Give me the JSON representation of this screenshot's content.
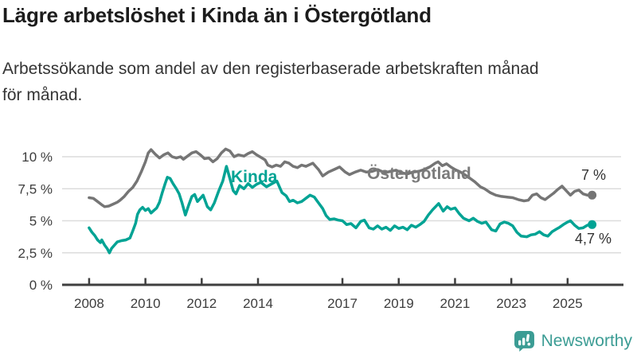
{
  "header": {
    "title": "Lägre arbetslöshet i Kinda än i Östergötland",
    "subtitle_lines": [
      "Arbetssökande som andel av den registerbaserade arbetskraften månad",
      "för månad."
    ],
    "subtitle_full": "Arbetssökande som andel av den registerbaserade arbetskraften månad för månad."
  },
  "chart_data": {
    "type": "line",
    "title": "Lägre arbetslöshet i Kinda än i Östergötland",
    "unit": "%",
    "grid": true,
    "legend_position": "inline-labels",
    "xlim": [
      2007.04,
      2026.9
    ],
    "ylim": [
      0,
      10
    ],
    "x_ticks": [
      {
        "year": 2008,
        "label": "2008"
      },
      {
        "year": 2010,
        "label": "2010"
      },
      {
        "year": 2012,
        "label": "2012"
      },
      {
        "year": 2014,
        "label": "2014"
      },
      {
        "year": 2017,
        "label": "2017"
      },
      {
        "year": 2019,
        "label": "2019"
      },
      {
        "year": 2021,
        "label": "2021"
      },
      {
        "year": 2023,
        "label": "2023"
      },
      {
        "year": 2025,
        "label": "2025"
      }
    ],
    "y_ticks": [
      {
        "value": 0,
        "label": "0 %"
      },
      {
        "value": 2.5,
        "label": "2,5 %"
      },
      {
        "value": 5,
        "label": "5 %"
      },
      {
        "value": 7.5,
        "label": "7,5 %"
      },
      {
        "value": 10,
        "label": "10 %"
      }
    ],
    "colors": {
      "grid": "#dcdcdc",
      "axis": "#3f3f3f",
      "tick_text": "#3d3d3d"
    },
    "series": [
      {
        "id": "ostergotland",
        "name": "Östergötland",
        "color": "#757575",
        "label_color": "#7a7a7a",
        "end_label": "7 %",
        "end_value": 7,
        "points": [
          [
            2008.0,
            6.8
          ],
          [
            2008.15,
            6.75
          ],
          [
            2008.3,
            6.5
          ],
          [
            2008.45,
            6.25
          ],
          [
            2008.55,
            6.1
          ],
          [
            2008.7,
            6.15
          ],
          [
            2008.85,
            6.3
          ],
          [
            2009.0,
            6.45
          ],
          [
            2009.1,
            6.6
          ],
          [
            2009.25,
            6.9
          ],
          [
            2009.4,
            7.3
          ],
          [
            2009.55,
            7.6
          ],
          [
            2009.7,
            8.1
          ],
          [
            2009.85,
            8.8
          ],
          [
            2010.0,
            9.6
          ],
          [
            2010.1,
            10.3
          ],
          [
            2010.2,
            10.55
          ],
          [
            2010.35,
            10.2
          ],
          [
            2010.5,
            9.9
          ],
          [
            2010.65,
            10.15
          ],
          [
            2010.8,
            10.3
          ],
          [
            2010.95,
            10.0
          ],
          [
            2011.1,
            9.9
          ],
          [
            2011.25,
            10.0
          ],
          [
            2011.35,
            9.8
          ],
          [
            2011.5,
            10.05
          ],
          [
            2011.65,
            10.3
          ],
          [
            2011.8,
            10.4
          ],
          [
            2011.95,
            10.15
          ],
          [
            2012.1,
            9.85
          ],
          [
            2012.25,
            9.9
          ],
          [
            2012.4,
            9.6
          ],
          [
            2012.55,
            9.85
          ],
          [
            2012.7,
            10.3
          ],
          [
            2012.85,
            10.6
          ],
          [
            2013.0,
            10.45
          ],
          [
            2013.15,
            10.0
          ],
          [
            2013.3,
            10.15
          ],
          [
            2013.5,
            10.05
          ],
          [
            2013.65,
            10.25
          ],
          [
            2013.8,
            10.4
          ],
          [
            2013.95,
            10.15
          ],
          [
            2014.1,
            9.95
          ],
          [
            2014.25,
            9.75
          ],
          [
            2014.35,
            9.35
          ],
          [
            2014.5,
            9.2
          ],
          [
            2014.65,
            9.35
          ],
          [
            2014.8,
            9.25
          ],
          [
            2014.95,
            9.6
          ],
          [
            2015.1,
            9.5
          ],
          [
            2015.25,
            9.25
          ],
          [
            2015.4,
            9.15
          ],
          [
            2015.55,
            9.35
          ],
          [
            2015.7,
            9.25
          ],
          [
            2015.85,
            9.4
          ],
          [
            2015.95,
            9.5
          ],
          [
            2016.15,
            9.0
          ],
          [
            2016.3,
            8.5
          ],
          [
            2016.5,
            8.8
          ],
          [
            2016.7,
            9.0
          ],
          [
            2016.9,
            9.2
          ],
          [
            2017.1,
            8.8
          ],
          [
            2017.25,
            8.6
          ],
          [
            2017.45,
            8.8
          ],
          [
            2017.65,
            8.95
          ],
          [
            2017.85,
            8.8
          ],
          [
            2018.05,
            8.85
          ],
          [
            2018.25,
            9.0
          ],
          [
            2018.5,
            8.75
          ],
          [
            2018.7,
            8.85
          ],
          [
            2018.9,
            8.95
          ],
          [
            2019.1,
            8.75
          ],
          [
            2019.3,
            8.65
          ],
          [
            2019.5,
            8.8
          ],
          [
            2019.7,
            8.85
          ],
          [
            2019.9,
            9.0
          ],
          [
            2020.1,
            9.2
          ],
          [
            2020.3,
            9.5
          ],
          [
            2020.4,
            9.6
          ],
          [
            2020.55,
            9.3
          ],
          [
            2020.7,
            9.45
          ],
          [
            2020.85,
            9.2
          ],
          [
            2021.0,
            9.0
          ],
          [
            2021.2,
            8.8
          ],
          [
            2021.45,
            8.45
          ],
          [
            2021.7,
            8.05
          ],
          [
            2021.9,
            7.65
          ],
          [
            2022.05,
            7.5
          ],
          [
            2022.25,
            7.2
          ],
          [
            2022.45,
            7.0
          ],
          [
            2022.65,
            6.9
          ],
          [
            2022.85,
            6.85
          ],
          [
            2023.05,
            6.8
          ],
          [
            2023.25,
            6.65
          ],
          [
            2023.45,
            6.55
          ],
          [
            2023.6,
            6.6
          ],
          [
            2023.75,
            7.0
          ],
          [
            2023.9,
            7.1
          ],
          [
            2024.05,
            6.8
          ],
          [
            2024.2,
            6.65
          ],
          [
            2024.35,
            6.9
          ],
          [
            2024.5,
            7.15
          ],
          [
            2024.65,
            7.45
          ],
          [
            2024.8,
            7.7
          ],
          [
            2024.95,
            7.35
          ],
          [
            2025.1,
            7.0
          ],
          [
            2025.25,
            7.3
          ],
          [
            2025.4,
            7.4
          ],
          [
            2025.55,
            7.1
          ],
          [
            2025.7,
            7.0
          ],
          [
            2025.87,
            7.0
          ]
        ]
      },
      {
        "id": "kinda",
        "name": "Kinda",
        "color": "#00a394",
        "label_color": "#00a394",
        "end_label": "4,7 %",
        "end_value": 4.7,
        "points": [
          [
            2008.0,
            4.45
          ],
          [
            2008.1,
            4.1
          ],
          [
            2008.2,
            3.85
          ],
          [
            2008.3,
            3.5
          ],
          [
            2008.4,
            3.3
          ],
          [
            2008.45,
            3.5
          ],
          [
            2008.55,
            3.1
          ],
          [
            2008.65,
            2.8
          ],
          [
            2008.72,
            2.5
          ],
          [
            2008.8,
            2.85
          ],
          [
            2008.9,
            3.1
          ],
          [
            2009.0,
            3.35
          ],
          [
            2009.15,
            3.45
          ],
          [
            2009.3,
            3.5
          ],
          [
            2009.45,
            3.65
          ],
          [
            2009.55,
            4.2
          ],
          [
            2009.65,
            4.8
          ],
          [
            2009.72,
            5.5
          ],
          [
            2009.8,
            5.85
          ],
          [
            2009.9,
            6.05
          ],
          [
            2010.0,
            5.8
          ],
          [
            2010.1,
            5.95
          ],
          [
            2010.2,
            5.6
          ],
          [
            2010.3,
            5.8
          ],
          [
            2010.4,
            6.0
          ],
          [
            2010.5,
            6.45
          ],
          [
            2010.6,
            7.2
          ],
          [
            2010.7,
            7.9
          ],
          [
            2010.78,
            8.4
          ],
          [
            2010.88,
            8.3
          ],
          [
            2010.98,
            7.9
          ],
          [
            2011.1,
            7.5
          ],
          [
            2011.2,
            7.1
          ],
          [
            2011.3,
            6.4
          ],
          [
            2011.42,
            5.45
          ],
          [
            2011.55,
            6.3
          ],
          [
            2011.65,
            6.9
          ],
          [
            2011.75,
            7.05
          ],
          [
            2011.85,
            6.5
          ],
          [
            2011.95,
            6.75
          ],
          [
            2012.05,
            7.0
          ],
          [
            2012.2,
            6.1
          ],
          [
            2012.32,
            5.85
          ],
          [
            2012.45,
            6.4
          ],
          [
            2012.6,
            7.3
          ],
          [
            2012.75,
            8.1
          ],
          [
            2012.88,
            9.25
          ],
          [
            2013.0,
            8.3
          ],
          [
            2013.12,
            7.35
          ],
          [
            2013.22,
            7.1
          ],
          [
            2013.35,
            7.75
          ],
          [
            2013.5,
            7.5
          ],
          [
            2013.65,
            7.9
          ],
          [
            2013.8,
            7.6
          ],
          [
            2013.95,
            7.85
          ],
          [
            2014.1,
            8.0
          ],
          [
            2014.3,
            7.65
          ],
          [
            2014.5,
            7.9
          ],
          [
            2014.67,
            8.1
          ],
          [
            2014.85,
            7.2
          ],
          [
            2015.0,
            6.95
          ],
          [
            2015.12,
            6.5
          ],
          [
            2015.25,
            6.6
          ],
          [
            2015.4,
            6.4
          ],
          [
            2015.55,
            6.5
          ],
          [
            2015.7,
            6.75
          ],
          [
            2015.85,
            7.0
          ],
          [
            2016.0,
            6.85
          ],
          [
            2016.15,
            6.4
          ],
          [
            2016.3,
            5.95
          ],
          [
            2016.42,
            5.4
          ],
          [
            2016.55,
            5.1
          ],
          [
            2016.7,
            5.15
          ],
          [
            2016.85,
            5.05
          ],
          [
            2017.0,
            5.0
          ],
          [
            2017.15,
            4.7
          ],
          [
            2017.3,
            4.78
          ],
          [
            2017.48,
            4.45
          ],
          [
            2017.65,
            4.95
          ],
          [
            2017.78,
            5.05
          ],
          [
            2017.95,
            4.45
          ],
          [
            2018.1,
            4.35
          ],
          [
            2018.25,
            4.6
          ],
          [
            2018.4,
            4.35
          ],
          [
            2018.55,
            4.5
          ],
          [
            2018.7,
            4.25
          ],
          [
            2018.85,
            4.6
          ],
          [
            2019.0,
            4.4
          ],
          [
            2019.15,
            4.5
          ],
          [
            2019.3,
            4.3
          ],
          [
            2019.45,
            4.65
          ],
          [
            2019.6,
            4.5
          ],
          [
            2019.75,
            4.7
          ],
          [
            2019.9,
            4.95
          ],
          [
            2020.05,
            5.45
          ],
          [
            2020.2,
            5.85
          ],
          [
            2020.42,
            6.35
          ],
          [
            2020.58,
            5.75
          ],
          [
            2020.72,
            6.1
          ],
          [
            2020.85,
            5.9
          ],
          [
            2021.0,
            6.0
          ],
          [
            2021.15,
            5.55
          ],
          [
            2021.3,
            5.2
          ],
          [
            2021.5,
            5.0
          ],
          [
            2021.65,
            5.2
          ],
          [
            2021.8,
            4.95
          ],
          [
            2021.95,
            4.8
          ],
          [
            2022.1,
            4.9
          ],
          [
            2022.3,
            4.3
          ],
          [
            2022.45,
            4.2
          ],
          [
            2022.6,
            4.75
          ],
          [
            2022.75,
            4.9
          ],
          [
            2022.9,
            4.8
          ],
          [
            2023.05,
            4.6
          ],
          [
            2023.2,
            4.1
          ],
          [
            2023.35,
            3.8
          ],
          [
            2023.55,
            3.75
          ],
          [
            2023.7,
            3.9
          ],
          [
            2023.85,
            3.95
          ],
          [
            2024.0,
            4.15
          ],
          [
            2024.15,
            3.9
          ],
          [
            2024.3,
            3.8
          ],
          [
            2024.45,
            4.15
          ],
          [
            2024.6,
            4.35
          ],
          [
            2024.72,
            4.5
          ],
          [
            2024.85,
            4.7
          ],
          [
            2025.0,
            4.9
          ],
          [
            2025.1,
            5.0
          ],
          [
            2025.25,
            4.65
          ],
          [
            2025.4,
            4.4
          ],
          [
            2025.55,
            4.45
          ],
          [
            2025.7,
            4.65
          ],
          [
            2025.87,
            4.7
          ]
        ]
      }
    ]
  },
  "footer": {
    "brand": "Newsworthy",
    "logo_icon": "bar-chart-speech-bubble-icon",
    "brand_color": "#3b9c94"
  }
}
